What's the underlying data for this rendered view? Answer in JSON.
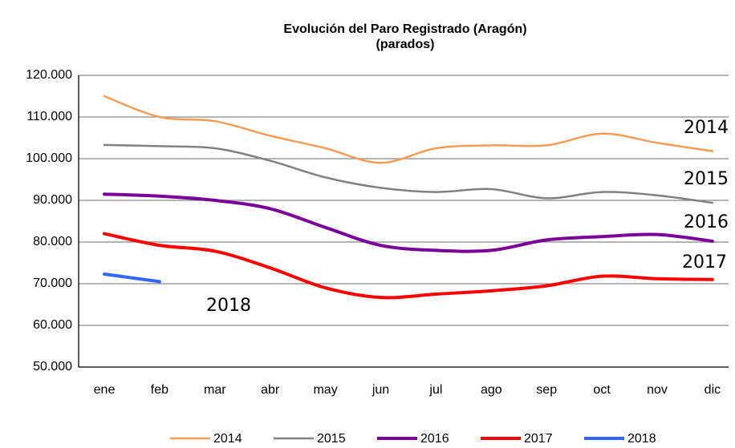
{
  "chart_data": {
    "type": "line",
    "title": "Evolución del Paro Registrado (Aragón)",
    "subtitle": "(parados)",
    "categories": [
      "ene",
      "feb",
      "mar",
      "abr",
      "may",
      "jun",
      "jul",
      "ago",
      "sep",
      "oct",
      "nov",
      "dic"
    ],
    "series": [
      {
        "name": "2014",
        "color": "#f59d56",
        "values": [
          115000,
          110000,
          109000,
          105500,
          102500,
          99000,
          102500,
          103200,
          103200,
          106000,
          103800,
          101800
        ]
      },
      {
        "name": "2015",
        "color": "#808080",
        "values": [
          103300,
          103000,
          102500,
          99500,
          95500,
          93000,
          92000,
          92700,
          90500,
          92000,
          91200,
          89400
        ]
      },
      {
        "name": "2016",
        "color": "#7b0099",
        "values": [
          91500,
          91000,
          90000,
          88000,
          83500,
          79200,
          78000,
          78000,
          80500,
          81300,
          81800,
          80200
        ]
      },
      {
        "name": "2017",
        "color": "#ff0000",
        "values": [
          82000,
          79200,
          77800,
          73800,
          69000,
          66700,
          67500,
          68300,
          69500,
          71800,
          71200,
          71000
        ]
      },
      {
        "name": "2018",
        "color": "#3366ff",
        "values": [
          72300,
          70500,
          null,
          null,
          null,
          null,
          null,
          null,
          null,
          null,
          null,
          null
        ]
      }
    ],
    "annotations": [
      "2014",
      "2015",
      "2016",
      "2017",
      "2018"
    ],
    "ylim": [
      50000,
      120000
    ],
    "yticks": [
      {
        "value": 50000,
        "label": "50.000"
      },
      {
        "value": 60000,
        "label": "60.000"
      },
      {
        "value": 70000,
        "label": "70.000"
      },
      {
        "value": 80000,
        "label": "80.000"
      },
      {
        "value": 90000,
        "label": "90.000"
      },
      {
        "value": 100000,
        "label": "100.000"
      },
      {
        "value": 110000,
        "label": "110.000"
      },
      {
        "value": 120000,
        "label": "120.000"
      }
    ],
    "grid": true,
    "legend": "bottom"
  }
}
